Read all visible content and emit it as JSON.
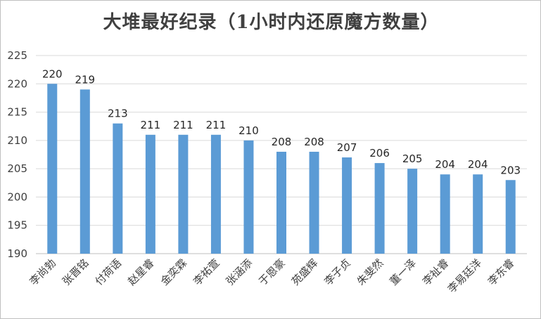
{
  "chart_data": {
    "type": "bar",
    "title": "大堆最好纪录（1小时内还原魔方数量）",
    "categories": [
      "李尚勃",
      "张晋铭",
      "付荷语",
      "赵星睿",
      "金奕霖",
      "李祐萱",
      "张涵添",
      "于恩豪",
      "苑盛辉",
      "李子贞",
      "朱斐然",
      "董一泽",
      "李祉睿",
      "李易廷洋",
      "李东睿"
    ],
    "values": [
      220,
      219,
      213,
      211,
      211,
      211,
      210,
      208,
      208,
      207,
      206,
      205,
      204,
      204,
      203
    ],
    "ylim": [
      190,
      225
    ],
    "yticks": [
      190,
      195,
      200,
      205,
      210,
      215,
      220,
      225
    ],
    "grid": true,
    "legend": "none",
    "bar_color": "#5b9bd5",
    "grid_color": "#d9d9d9"
  }
}
